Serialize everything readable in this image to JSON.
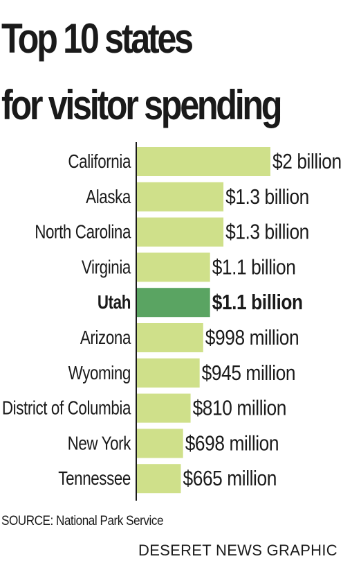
{
  "title": {
    "line1": "Top 10 states",
    "line2": "for visitor spending"
  },
  "chart_data": {
    "type": "bar",
    "orientation": "horizontal",
    "categories": [
      "California",
      "Alaska",
      "North Carolina",
      "Virginia",
      "Utah",
      "Arizona",
      "Wyoming",
      "District of Columbia",
      "New York",
      "Tennessee"
    ],
    "values": [
      2000,
      1300,
      1300,
      1100,
      1100,
      998,
      945,
      810,
      698,
      665
    ],
    "value_unit": "million dollars",
    "data_labels": [
      "$2 billion",
      "$1.3 billion",
      "$1.3 billion",
      "$1.1 billion",
      "$1.1 billion",
      "$998 million",
      "$945 million",
      "$810 million",
      "$698 million",
      "$665 million"
    ],
    "highlight": "Utah",
    "colors": {
      "bar": "#cfe08a",
      "highlight": "#5aa462",
      "axis": "#1a1a1a"
    },
    "grid": false,
    "legend": "none"
  },
  "footer": {
    "source": "SOURCE: National Park Service",
    "credit": "DESERET NEWS GRAPHIC"
  }
}
